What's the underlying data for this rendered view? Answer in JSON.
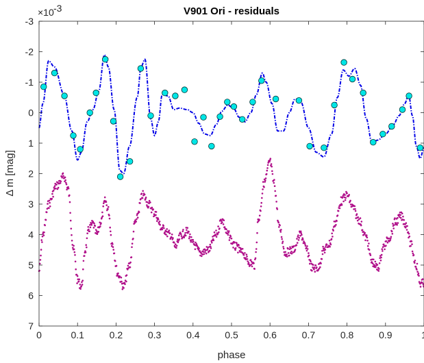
{
  "chart_data": {
    "type": "scatter",
    "title": "V901 Ori - residuals",
    "xlabel": "phase",
    "ylabel": "Δ m [mag]",
    "y_exponent_label": "×10",
    "y_exponent": "-3",
    "xlim": [
      0,
      1
    ],
    "ylim": [
      -3,
      7
    ],
    "y_reversed": true,
    "x_ticks": [
      "0",
      "0.1",
      "0.2",
      "0.3",
      "0.4",
      "0.5",
      "0.6",
      "0.7",
      "0.8",
      "0.9",
      "1"
    ],
    "y_ticks": [
      "-3",
      "-2",
      "-1",
      "0",
      "1",
      "2",
      "3",
      "4",
      "5",
      "6",
      "7"
    ],
    "grid": false,
    "colors": {
      "model": "#0000e6",
      "observed_fill": "#00e6e6",
      "observed_edge": "#003333",
      "lower": "#b0108a",
      "axis": "#262626"
    },
    "model_curve_knots": [
      [
        0.0,
        0.5
      ],
      [
        0.01,
        -0.3
      ],
      [
        0.025,
        -1.7
      ],
      [
        0.04,
        -1.5
      ],
      [
        0.065,
        -0.6
      ],
      [
        0.085,
        0.6
      ],
      [
        0.1,
        1.55
      ],
      [
        0.11,
        1.3
      ],
      [
        0.125,
        0.3
      ],
      [
        0.14,
        -0.1
      ],
      [
        0.155,
        -0.7
      ],
      [
        0.17,
        -1.9
      ],
      [
        0.18,
        -1.5
      ],
      [
        0.195,
        -0.1
      ],
      [
        0.21,
        1.9
      ],
      [
        0.22,
        2.0
      ],
      [
        0.235,
        1.1
      ],
      [
        0.255,
        -0.5
      ],
      [
        0.265,
        -1.5
      ],
      [
        0.275,
        -1.75
      ],
      [
        0.29,
        0.2
      ],
      [
        0.3,
        0.75
      ],
      [
        0.31,
        0.3
      ],
      [
        0.32,
        -0.6
      ],
      [
        0.335,
        -0.55
      ],
      [
        0.35,
        -0.1
      ],
      [
        0.365,
        -0.15
      ],
      [
        0.385,
        -0.1
      ],
      [
        0.4,
        0.0
      ],
      [
        0.415,
        0.35
      ],
      [
        0.43,
        0.7
      ],
      [
        0.445,
        0.75
      ],
      [
        0.46,
        0.4
      ],
      [
        0.475,
        -0.05
      ],
      [
        0.49,
        -0.25
      ],
      [
        0.505,
        -0.15
      ],
      [
        0.52,
        0.15
      ],
      [
        0.535,
        0.3
      ],
      [
        0.55,
        0.0
      ],
      [
        0.565,
        -0.6
      ],
      [
        0.58,
        -1.3
      ],
      [
        0.59,
        -1.0
      ],
      [
        0.605,
        -0.3
      ],
      [
        0.62,
        0.6
      ],
      [
        0.635,
        0.6
      ],
      [
        0.65,
        0.0
      ],
      [
        0.665,
        -0.45
      ],
      [
        0.68,
        -0.35
      ],
      [
        0.7,
        0.5
      ],
      [
        0.72,
        1.3
      ],
      [
        0.74,
        1.45
      ],
      [
        0.76,
        0.7
      ],
      [
        0.775,
        -0.5
      ],
      [
        0.79,
        -1.4
      ],
      [
        0.805,
        -1.2
      ],
      [
        0.82,
        -1.45
      ],
      [
        0.835,
        -0.9
      ],
      [
        0.85,
        0.2
      ],
      [
        0.865,
        1.0
      ],
      [
        0.88,
        0.9
      ],
      [
        0.9,
        0.7
      ],
      [
        0.92,
        0.4
      ],
      [
        0.935,
        0.1
      ],
      [
        0.95,
        -0.3
      ],
      [
        0.96,
        -0.6
      ],
      [
        0.97,
        0.1
      ],
      [
        0.98,
        1.1
      ],
      [
        0.99,
        1.5
      ],
      [
        1.0,
        1.15
      ]
    ],
    "observed_points": [
      [
        0.012,
        -0.85
      ],
      [
        0.04,
        -1.3
      ],
      [
        0.066,
        -0.55
      ],
      [
        0.089,
        0.75
      ],
      [
        0.107,
        1.2
      ],
      [
        0.132,
        0.0
      ],
      [
        0.148,
        -0.65
      ],
      [
        0.172,
        -1.75
      ],
      [
        0.193,
        0.28
      ],
      [
        0.211,
        2.1
      ],
      [
        0.236,
        1.6
      ],
      [
        0.264,
        -1.45
      ],
      [
        0.29,
        0.1
      ],
      [
        0.327,
        -0.65
      ],
      [
        0.354,
        -0.55
      ],
      [
        0.378,
        -0.75
      ],
      [
        0.404,
        0.95
      ],
      [
        0.427,
        0.15
      ],
      [
        0.448,
        1.1
      ],
      [
        0.47,
        0.13
      ],
      [
        0.489,
        -0.35
      ],
      [
        0.506,
        -0.2
      ],
      [
        0.528,
        0.22
      ],
      [
        0.555,
        -0.35
      ],
      [
        0.578,
        -1.05
      ],
      [
        0.615,
        -0.45
      ],
      [
        0.675,
        -0.4
      ],
      [
        0.703,
        1.1
      ],
      [
        0.74,
        1.15
      ],
      [
        0.767,
        -0.25
      ],
      [
        0.792,
        -1.65
      ],
      [
        0.814,
        -1.1
      ],
      [
        0.842,
        -0.65
      ],
      [
        0.868,
        0.97
      ],
      [
        0.893,
        0.7
      ],
      [
        0.916,
        0.45
      ],
      [
        0.944,
        -0.1
      ],
      [
        0.961,
        -0.55
      ],
      [
        0.99,
        1.15
      ]
    ],
    "lower_series_knots": [
      [
        0.0,
        5.2
      ],
      [
        0.01,
        4.0
      ],
      [
        0.025,
        3.0
      ],
      [
        0.045,
        2.4
      ],
      [
        0.065,
        2.1
      ],
      [
        0.075,
        2.5
      ],
      [
        0.09,
        4.5
      ],
      [
        0.1,
        5.5
      ],
      [
        0.11,
        5.7
      ],
      [
        0.12,
        4.5
      ],
      [
        0.13,
        3.8
      ],
      [
        0.14,
        3.65
      ],
      [
        0.15,
        4.0
      ],
      [
        0.16,
        3.6
      ],
      [
        0.172,
        2.9
      ],
      [
        0.18,
        3.2
      ],
      [
        0.19,
        4.3
      ],
      [
        0.205,
        5.3
      ],
      [
        0.22,
        5.7
      ],
      [
        0.235,
        5.0
      ],
      [
        0.25,
        3.6
      ],
      [
        0.27,
        2.7
      ],
      [
        0.285,
        3.0
      ],
      [
        0.3,
        3.3
      ],
      [
        0.32,
        3.8
      ],
      [
        0.34,
        4.0
      ],
      [
        0.355,
        4.4
      ],
      [
        0.37,
        4.0
      ],
      [
        0.385,
        3.9
      ],
      [
        0.4,
        4.3
      ],
      [
        0.42,
        4.6
      ],
      [
        0.44,
        4.5
      ],
      [
        0.46,
        4.0
      ],
      [
        0.475,
        3.5
      ],
      [
        0.49,
        4.0
      ],
      [
        0.51,
        4.4
      ],
      [
        0.53,
        4.6
      ],
      [
        0.545,
        4.9
      ],
      [
        0.56,
        5.0
      ],
      [
        0.57,
        3.5
      ],
      [
        0.585,
        2.3
      ],
      [
        0.6,
        1.6
      ],
      [
        0.61,
        2.3
      ],
      [
        0.625,
        3.8
      ],
      [
        0.64,
        4.6
      ],
      [
        0.66,
        4.5
      ],
      [
        0.68,
        4.0
      ],
      [
        0.695,
        4.5
      ],
      [
        0.71,
        5.1
      ],
      [
        0.725,
        5.1
      ],
      [
        0.74,
        4.5
      ],
      [
        0.755,
        4.3
      ],
      [
        0.77,
        3.6
      ],
      [
        0.785,
        2.9
      ],
      [
        0.8,
        2.7
      ],
      [
        0.815,
        3.1
      ],
      [
        0.83,
        3.5
      ],
      [
        0.85,
        4.1
      ],
      [
        0.865,
        4.9
      ],
      [
        0.88,
        5.1
      ],
      [
        0.895,
        4.4
      ],
      [
        0.91,
        4.1
      ],
      [
        0.925,
        3.6
      ],
      [
        0.94,
        3.4
      ],
      [
        0.955,
        3.7
      ],
      [
        0.965,
        4.3
      ],
      [
        0.98,
        5.0
      ],
      [
        0.99,
        5.6
      ],
      [
        1.0,
        5.6
      ]
    ]
  }
}
